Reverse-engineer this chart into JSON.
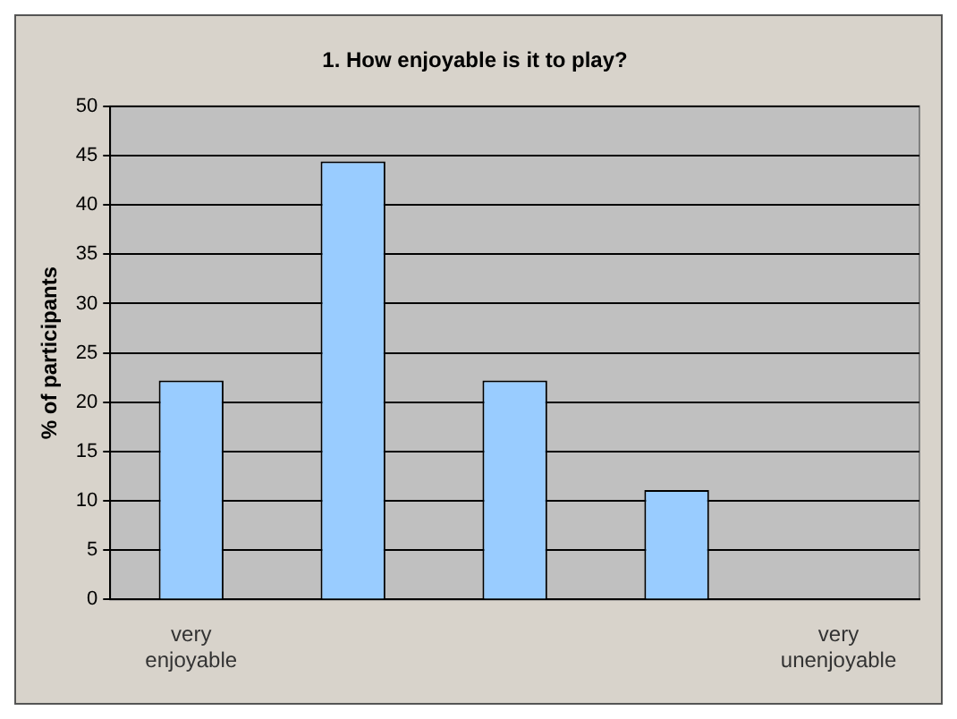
{
  "chart_data": {
    "type": "bar",
    "title": "1. How enjoyable is it to play?",
    "ylabel": "% of participants",
    "categories": [
      "very enjoyable",
      null,
      null,
      null,
      "very unenjoyable"
    ],
    "values": [
      22.2,
      44.4,
      22.2,
      11.1,
      0
    ],
    "color": "#99ccff",
    "ylim": [
      0,
      50
    ],
    "yticks": [
      0,
      5,
      10,
      15,
      20,
      25,
      30,
      35,
      40,
      45,
      50
    ],
    "grid": "y",
    "legend": false
  }
}
